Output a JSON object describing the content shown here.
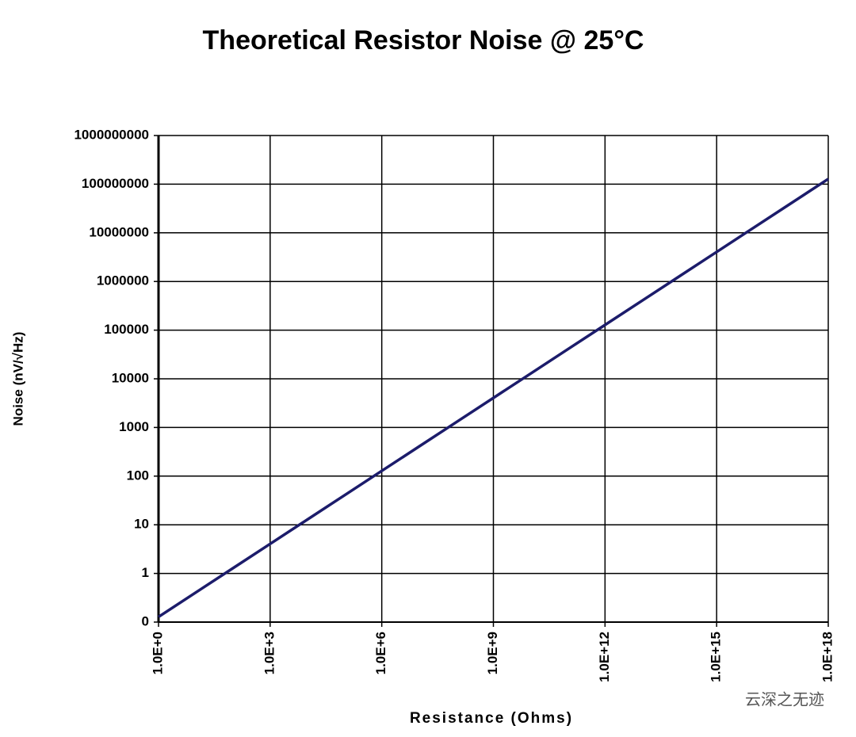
{
  "chart_data": {
    "type": "line",
    "title": "Theoretical Resistor Noise @ 25°C",
    "xlabel": "Resistance (Ohms)",
    "ylabel": "Noise (nV/√Hz)",
    "watermark": "云深之无迹",
    "xscale": "log",
    "yscale": "log",
    "grid": true,
    "x": [
      1,
      10,
      100,
      1000,
      10000,
      100000,
      1000000,
      10000000,
      100000000,
      1000000000,
      10000000000,
      100000000000,
      1000000000000,
      10000000000000,
      100000000000000,
      1000000000000000,
      10000000000000000,
      100000000000000000,
      1000000000000000000
    ],
    "series": [
      {
        "name": "Noise",
        "color": "#1c1c6b",
        "values": [
          0.128,
          0.405,
          1.28,
          4.05,
          12.8,
          40.5,
          128,
          405,
          1280,
          4050,
          12800,
          40500,
          128000,
          405000,
          1280000,
          4050000,
          12800000,
          40500000,
          128000000
        ]
      }
    ],
    "xlim": [
      1,
      1000000000000000000
    ],
    "xticks": [
      {
        "value": 1,
        "label": "1.0E+0"
      },
      {
        "value": 1000,
        "label": "1.0E+3"
      },
      {
        "value": 1000000,
        "label": "1.0E+6"
      },
      {
        "value": 1000000000,
        "label": "1.0E+9"
      },
      {
        "value": 1000000000000,
        "label": "1.0E+12"
      },
      {
        "value": 1000000000000000,
        "label": "1.0E+15"
      },
      {
        "value": 1000000000000000000,
        "label": "1.0E+18"
      }
    ],
    "ylim": [
      0.1,
      1000000000
    ],
    "yticks": [
      {
        "value": 0.1,
        "label": "0"
      },
      1,
      10,
      100,
      1000,
      10000,
      100000,
      1000000,
      10000000,
      100000000,
      1000000000
    ]
  }
}
